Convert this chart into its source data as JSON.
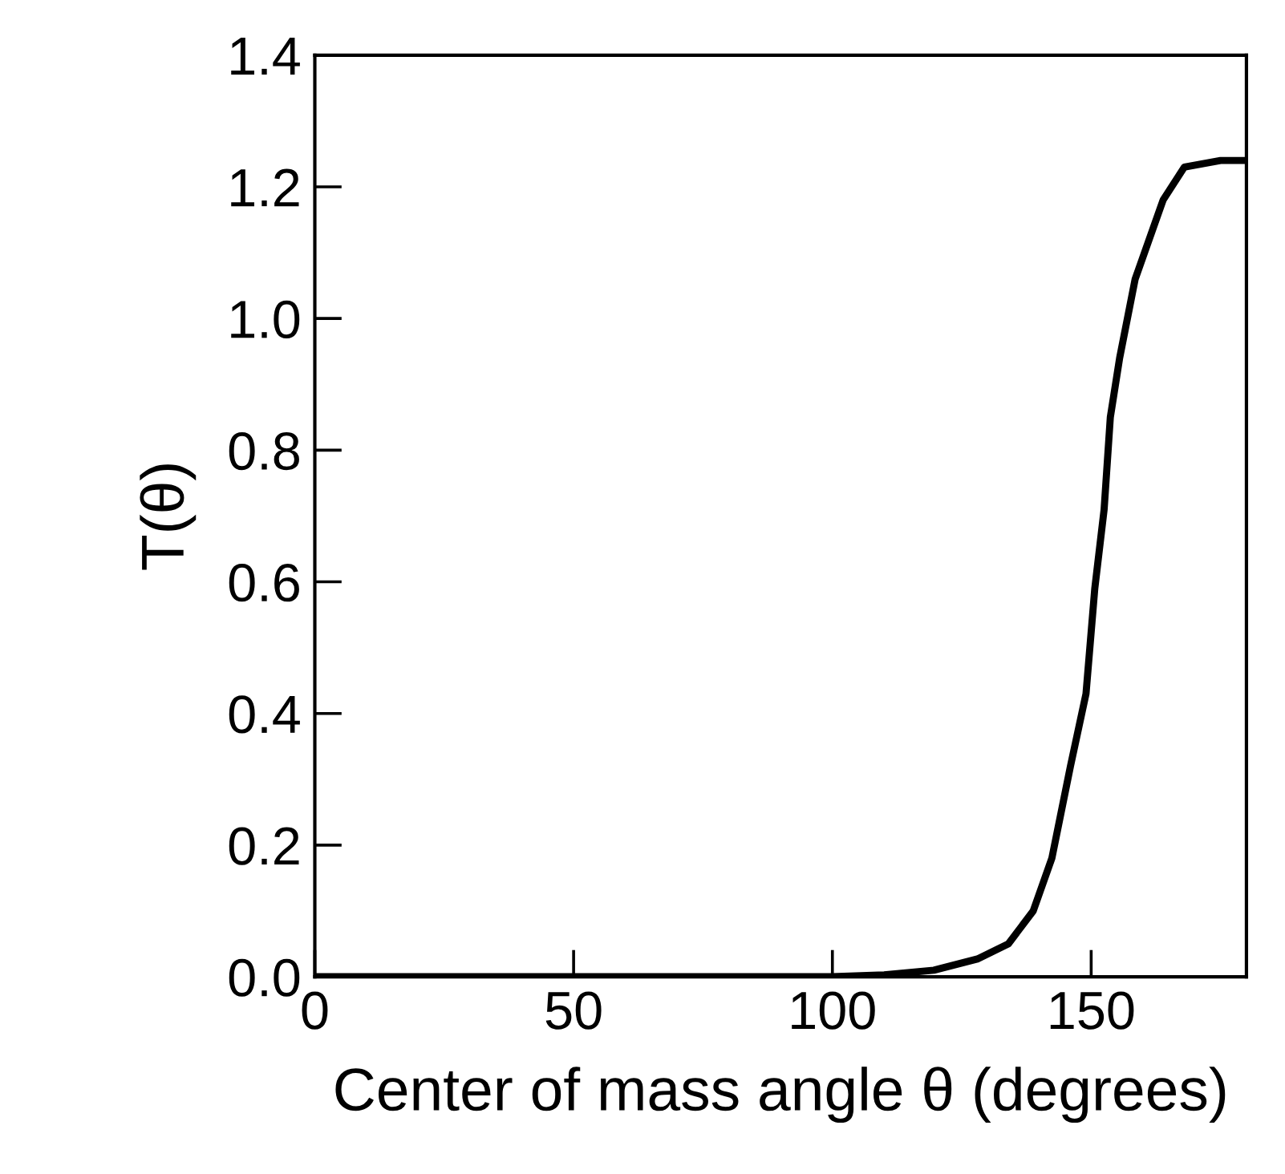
{
  "chart_data": {
    "type": "line",
    "xlabel": "Center of mass angle θ (degrees)",
    "ylabel": "T(θ)",
    "series": [
      {
        "color": "#000000",
        "x": [
          0,
          50,
          100,
          110,
          119.6,
          128,
          134,
          138.8,
          142.4,
          146,
          149,
          150.7,
          152.5,
          153.7,
          155.5,
          158.5,
          163.9,
          168,
          175,
          180
        ],
        "values": [
          0,
          0,
          0,
          0.003,
          0.01,
          0.027,
          0.05,
          0.1,
          0.18,
          0.32,
          0.43,
          0.59,
          0.71,
          0.85,
          0.94,
          1.06,
          1.18,
          1.23,
          1.24,
          1.24
        ]
      }
    ],
    "xlim": [
      0,
      180
    ],
    "ylim": [
      0,
      1.4
    ],
    "xticks": [
      0,
      50,
      100,
      150
    ],
    "yticks": [
      {
        "value": 0,
        "label": "0.0"
      },
      {
        "value": 0.2,
        "label": "0.2"
      },
      {
        "value": 0.4,
        "label": "0.4"
      },
      {
        "value": 0.6,
        "label": "0.6"
      },
      {
        "value": 0.8,
        "label": "0.8"
      },
      {
        "value": 1.0,
        "label": "1.0"
      },
      {
        "value": 1.2,
        "label": "1.2"
      },
      {
        "value": 1.4,
        "label": "1.4"
      }
    ],
    "marker": "none",
    "line_style": "solid"
  }
}
